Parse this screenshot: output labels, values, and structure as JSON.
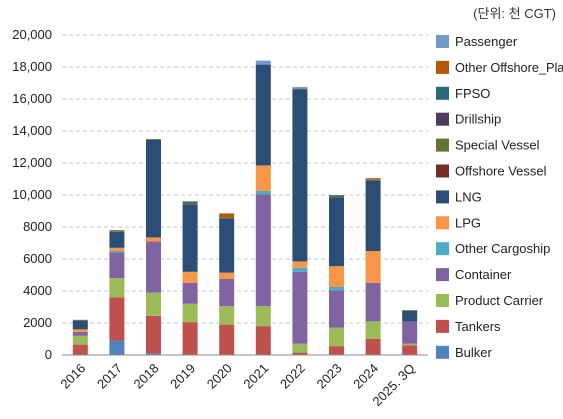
{
  "chart_data": {
    "type": "bar",
    "stacked": true,
    "unit_note": "(단위: 천 CGT)",
    "categories": [
      "2016",
      "2017",
      "2018",
      "2019",
      "2020",
      "2021",
      "2022",
      "2023",
      "2024",
      "2025. 3Q"
    ],
    "ylim": [
      0,
      20000
    ],
    "yticks": [
      0,
      2000,
      4000,
      6000,
      8000,
      10000,
      12000,
      14000,
      16000,
      18000,
      20000
    ],
    "ytick_labels": [
      "0",
      "2000",
      "4000",
      "6000",
      "8000",
      "10,000",
      "12,000",
      "14,000",
      "16,000",
      "18,000",
      "20,000"
    ],
    "grid": "horizontal-dashed",
    "legend_position": "right",
    "series": [
      {
        "name": "Bulker",
        "color": "#4f81bd",
        "values": [
          0,
          900,
          100,
          0,
          0,
          0,
          0,
          0,
          0,
          0
        ]
      },
      {
        "name": "Tankers",
        "color": "#c0504d",
        "values": [
          650,
          2700,
          2350,
          2050,
          1900,
          1800,
          150,
          550,
          1000,
          600
        ]
      },
      {
        "name": "Product Carrier",
        "color": "#9bbb59",
        "values": [
          550,
          1200,
          1450,
          1150,
          1150,
          1250,
          550,
          1150,
          1100,
          100
        ]
      },
      {
        "name": "Container",
        "color": "#8064a2",
        "values": [
          250,
          1600,
          3200,
          1300,
          1700,
          7000,
          4500,
          2350,
          2400,
          1400
        ]
      },
      {
        "name": "Other Cargoship",
        "color": "#4bacc6",
        "values": [
          0,
          100,
          0,
          0,
          0,
          200,
          250,
          200,
          0,
          0
        ]
      },
      {
        "name": "LPG",
        "color": "#f79646",
        "values": [
          150,
          200,
          250,
          700,
          400,
          1600,
          400,
          1300,
          2000,
          0
        ]
      },
      {
        "name": "LNG",
        "color": "#2c4d75",
        "values": [
          550,
          1000,
          6100,
          4200,
          3400,
          6300,
          10750,
          4300,
          4400,
          650
        ]
      },
      {
        "name": "Offshore Vessel",
        "color": "#772c2a",
        "values": [
          0,
          0,
          0,
          0,
          0,
          0,
          0,
          0,
          0,
          0
        ]
      },
      {
        "name": "Special Vessel",
        "color": "#5f7530",
        "values": [
          50,
          100,
          50,
          100,
          50,
          0,
          50,
          100,
          50,
          50
        ]
      },
      {
        "name": "Drillship",
        "color": "#4d3b62",
        "values": [
          0,
          0,
          0,
          0,
          0,
          0,
          0,
          0,
          0,
          0
        ]
      },
      {
        "name": "FPSO",
        "color": "#276a7c",
        "values": [
          0,
          0,
          0,
          100,
          0,
          0,
          0,
          50,
          0,
          0
        ]
      },
      {
        "name": "Other Offshore_Plant",
        "color": "#b65708",
        "values": [
          0,
          0,
          0,
          0,
          250,
          0,
          0,
          0,
          100,
          0
        ]
      },
      {
        "name": "Passenger",
        "color": "#729aca",
        "values": [
          0,
          0,
          0,
          0,
          0,
          250,
          100,
          0,
          0,
          0
        ]
      }
    ]
  }
}
